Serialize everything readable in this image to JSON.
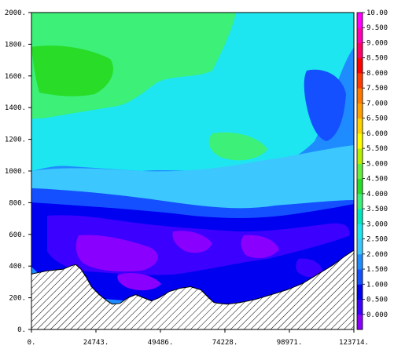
{
  "chart_data": {
    "type": "heatmap",
    "title": "",
    "xlabel": "",
    "ylabel": "",
    "x_ticks": [
      "0.",
      "24743.",
      "49486.",
      "74228.",
      "98971.",
      "123714."
    ],
    "x_tick_values": [
      0,
      24743,
      49486,
      74228,
      98971,
      123714
    ],
    "xlim": [
      0,
      123714
    ],
    "y_ticks": [
      "0.",
      "200.",
      "400.",
      "600.",
      "800.",
      "1000.",
      "1200.",
      "1400.",
      "1600.",
      "1800.",
      "2000."
    ],
    "y_tick_values": [
      0,
      200,
      400,
      600,
      800,
      1000,
      1200,
      1400,
      1600,
      1800,
      2000
    ],
    "ylim": [
      0,
      2000
    ],
    "colorbar": {
      "labels": [
        "0.000",
        "0.500",
        "1.000",
        "1.500",
        "2.000",
        "2.500",
        "3.000",
        "3.500",
        "4.000",
        "4.500",
        "5.000",
        "5.500",
        "6.000",
        "6.500",
        "7.000",
        "7.500",
        "8.000",
        "8.500",
        "9.000",
        "9.500",
        "10.00"
      ],
      "values": [
        0,
        0.5,
        1,
        1.5,
        2,
        2.5,
        3,
        3.5,
        4,
        4.5,
        5,
        5.5,
        6,
        6.5,
        7,
        7.5,
        8,
        8.5,
        9,
        9.5,
        10
      ],
      "range": [
        0,
        10.5
      ],
      "colors": [
        "#8a00ff",
        "#3c00ff",
        "#0000f0",
        "#1450ff",
        "#1e8cff",
        "#3cc8ff",
        "#1ee6f0",
        "#00e6be",
        "#3cf078",
        "#28dc28",
        "#64f03c",
        "#b4f000",
        "#ffff00",
        "#ffd200",
        "#ffa000",
        "#ff7800",
        "#ff3c00",
        "#ff0000",
        "#ff0064",
        "#ff00b4",
        "#ff00ff"
      ]
    },
    "fields": [
      {
        "level": 2.0,
        "region": "bulk domain above terrain"
      },
      {
        "level": 3.0,
        "region": "upper troposphere band, y 1000 to 2000"
      },
      {
        "level": 4.0,
        "region": "upper left and center, y 1400 to 1900"
      },
      {
        "level": 4.5,
        "region": "local maximum near x 25000, y 1650"
      },
      {
        "level": 2.5,
        "region": "band y 800 to 1000"
      },
      {
        "level": 1.5,
        "region": "band y 550 to 800"
      },
      {
        "level": 1.0,
        "region": "layer y 300 to 800"
      },
      {
        "level": 0.5,
        "region": "patches y 200 to 750"
      },
      {
        "level": 0.0,
        "region": "patches y 200 to 650"
      }
    ],
    "terrain": {
      "x": [
        0,
        6000,
        12000,
        15000,
        17000,
        19000,
        21000,
        23000,
        26000,
        29000,
        31000,
        34000,
        37000,
        40000,
        43000,
        46000,
        49000,
        53000,
        57000,
        61000,
        65000,
        68000,
        70000,
        72000,
        75000,
        80000,
        86000,
        92000,
        98000,
        104000,
        110000,
        116000,
        120000,
        123714
      ],
      "y": [
        350,
        370,
        380,
        400,
        410,
        380,
        330,
        270,
        220,
        180,
        160,
        165,
        200,
        220,
        200,
        180,
        200,
        240,
        260,
        270,
        250,
        200,
        170,
        165,
        160,
        170,
        190,
        220,
        250,
        290,
        350,
        410,
        460,
        500
      ]
    }
  }
}
